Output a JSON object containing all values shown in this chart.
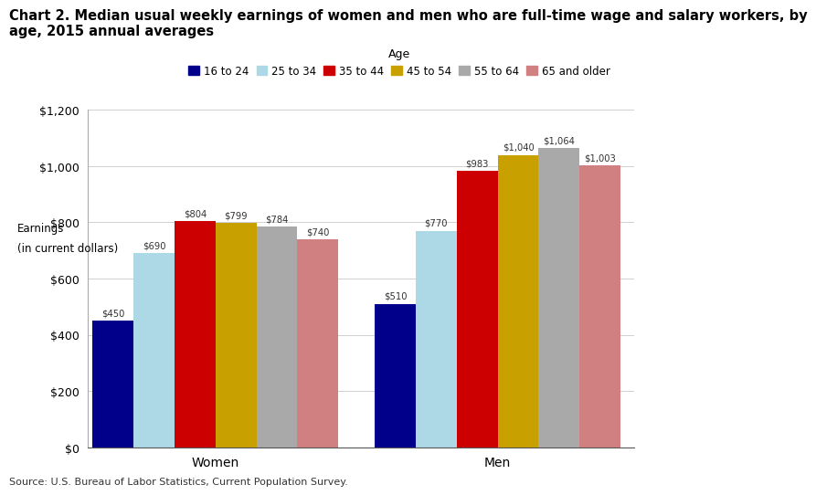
{
  "title_line1": "Chart 2. Median usual weekly earnings of women and men who are full-time wage and salary workers, by",
  "title_line2": "age, 2015 annual averages",
  "ylabel_line1": "Earnings",
  "ylabel_line2": "(in current dollars)",
  "xlabel_legend": "Age",
  "source": "Source: U.S. Bureau of Labor Statistics, Current Population Survey.",
  "categories": [
    "Women",
    "Men"
  ],
  "age_groups": [
    "16 to 24",
    "25 to 34",
    "35 to 44",
    "45 to 54",
    "55 to 64",
    "65 and older"
  ],
  "colors": [
    "#00008B",
    "#ADD8E6",
    "#CC0000",
    "#C8A000",
    "#A9A9A9",
    "#D08080"
  ],
  "values": {
    "Women": [
      450,
      690,
      804,
      799,
      784,
      740
    ],
    "Men": [
      510,
      770,
      983,
      1040,
      1064,
      1003
    ]
  },
  "ylim": [
    0,
    1200
  ],
  "yticks": [
    0,
    200,
    400,
    600,
    800,
    1000,
    1200
  ],
  "ytick_labels": [
    "$0",
    "$200",
    "$400",
    "$600",
    "$800",
    "$1,000",
    "$1,200"
  ],
  "background_color": "#ffffff",
  "title_fontsize": 10.5,
  "bar_width": 0.09,
  "group_centers": [
    0.33,
    0.95
  ]
}
